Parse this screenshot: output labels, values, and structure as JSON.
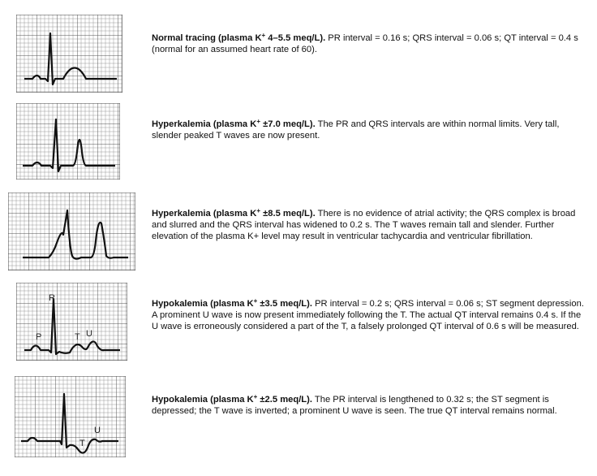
{
  "panels": [
    {
      "id": "normal",
      "title_main": "Normal tracing (plasma K",
      "title_sup": "+",
      "title_rest": " 4–5.5 meq/L).",
      "body": "  PR interval   = 0.16 s; QRS interval = 0.06 s; QT interval = 0.4 s (normal for an assumed heart rate of 60).",
      "labels": []
    },
    {
      "id": "hyperkalemia-7",
      "title_main": "Hyperkalemia (plasma K",
      "title_sup": "+",
      "title_rest": " ±7.0 meq/L).",
      "body": "  The PR and QRS intervals are within normal limits. Very tall, slender peaked T waves are now present.",
      "labels": []
    },
    {
      "id": "hyperkalemia-8.5",
      "title_main": "Hyperkalemia (plasma K",
      "title_sup": "+",
      "title_rest": " ±8.5 meq/L).",
      "body": "  There is no evidence of atrial activity; the QRS complex is broad and slurred and the QRS interval has widened to 0.2 s. The T waves remain tall and slender.  Further elevation of the plasma K+ level may result in ventricular tachycardia and ventricular fibrillation.",
      "labels": []
    },
    {
      "id": "hypokalemia-3.5",
      "title_main": "Hypokalemia (plasma K",
      "title_sup": "+",
      "title_rest": " ±3.5 meq/L).",
      "body": "  PR interval = 0.2 s; QRS interval = 0.06 s; ST segment depression. A prominent U wave is now present immediately following the T. The actual QT interval remains 0.4 s. If the U wave is erroneously considered a part of the T, a falsely prolonged QT interval of 0.6 s will be measured.",
      "labels": [
        "R",
        "P",
        "T",
        "U"
      ]
    },
    {
      "id": "hypokalemia-2.5",
      "title_main": "Hypokalemia (plasma K",
      "title_sup": "+",
      "title_rest": " ±2.5 meq/L).",
      "body": "  The PR interval is lengthened to 0.32 s; the ST segment is depressed; the T wave is inverted; a prominent U wave is seen. The true QT interval remains normal.",
      "labels": [
        "T",
        "U"
      ]
    }
  ]
}
